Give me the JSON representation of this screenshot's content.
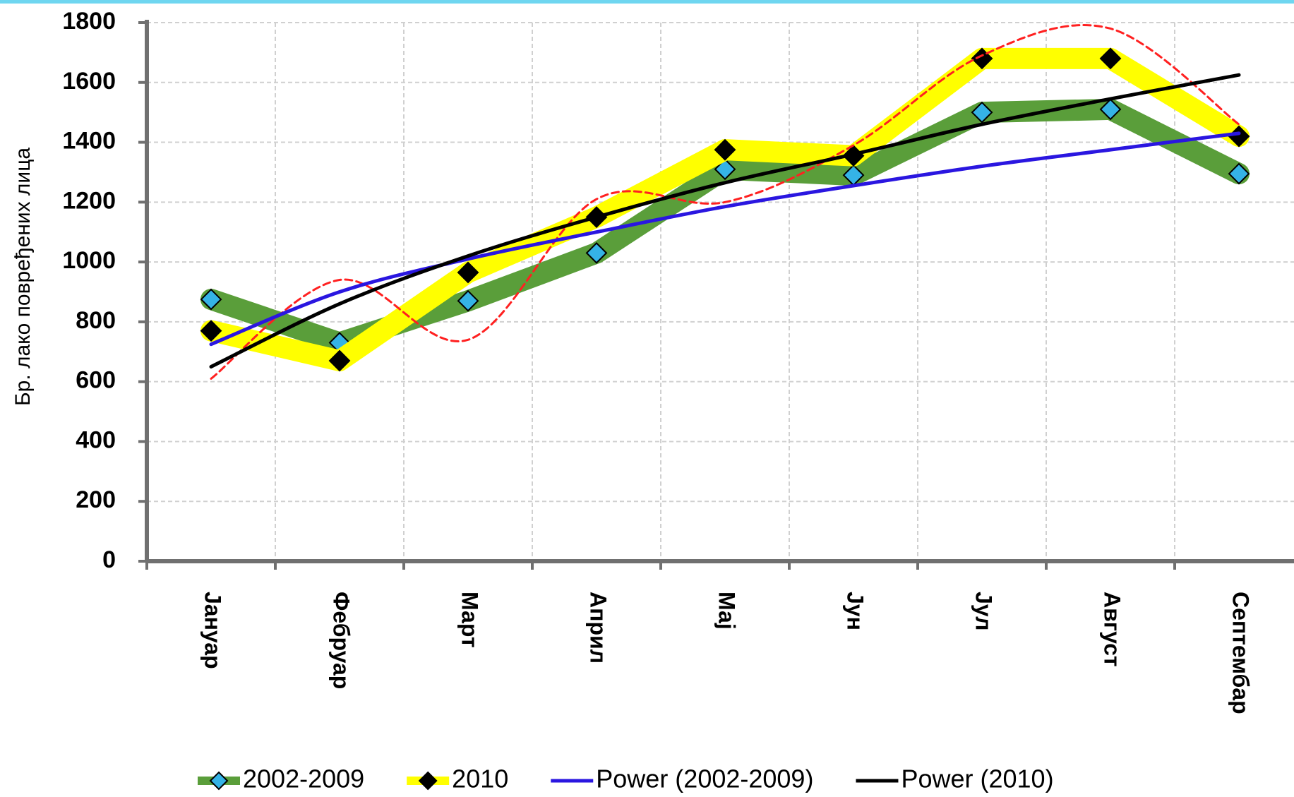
{
  "chart_data": {
    "type": "line",
    "ylabel": "Бр. лако повређених лица",
    "categories": [
      "Јануар",
      "Фебруар",
      "Март",
      "Април",
      "Мај",
      "Јун",
      "Јул",
      "Август",
      "Септембар"
    ],
    "ylim": [
      0,
      1800
    ],
    "yticks": [
      0,
      200,
      400,
      600,
      800,
      1000,
      1200,
      1400,
      1600,
      1800
    ],
    "grid": true,
    "series": [
      {
        "name": "2002-2009",
        "color": "#5a9e3a",
        "marker_color": "#35b3e6",
        "width": 30,
        "values": [
          875,
          730,
          870,
          1030,
          1310,
          1290,
          1500,
          1510,
          1295
        ]
      },
      {
        "name": "2010",
        "color": "#ffff00",
        "marker_color": "#000000",
        "width": 30,
        "values": [
          770,
          670,
          965,
          1150,
          1375,
          1355,
          1680,
          1680,
          1420
        ]
      },
      {
        "color": "#ff2020",
        "width": 3,
        "dashed": true,
        "smooth": true,
        "values": [
          610,
          940,
          740,
          1210,
          1200,
          1390,
          1690,
          1780,
          1460
        ]
      },
      {
        "name": "Power (2002-2009)",
        "color": "#2a16e0",
        "width": 5,
        "smooth": true,
        "values": [
          725,
          900,
          1010,
          1100,
          1185,
          1255,
          1320,
          1375,
          1430
        ]
      },
      {
        "name": "Power (2010)",
        "color": "#000000",
        "width": 5,
        "smooth": true,
        "values": [
          650,
          860,
          1020,
          1150,
          1265,
          1360,
          1460,
          1545,
          1625
        ]
      }
    ]
  }
}
